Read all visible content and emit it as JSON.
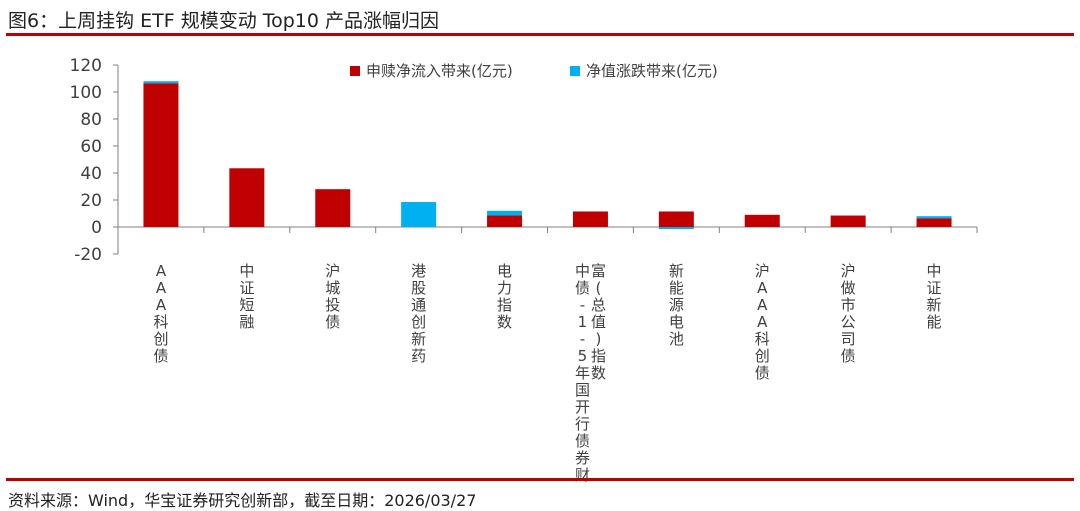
{
  "figure": {
    "title": "图6：上周挂钩 ETF 规模变动 Top10 产品涨幅归因",
    "source": "资料来源：Wind，华宝证券研究创新部，截至日期：2026/03/27"
  },
  "colors": {
    "accent_rule": "#c00000"
  },
  "chart_data": {
    "type": "bar",
    "stacked": true,
    "categories": [
      [
        "AAA科创债"
      ],
      [
        "中证短融"
      ],
      [
        "沪城投债"
      ],
      [
        "港股通创新药"
      ],
      [
        "电力指数"
      ],
      [
        "中债-1-5年国开行债券财",
        "富(总值)指数"
      ],
      [
        "新能源电池"
      ],
      [
        "沪AAA科创债"
      ],
      [
        "沪做市公司债"
      ],
      [
        "中证新能"
      ]
    ],
    "series": [
      {
        "name": "申赎净流入带来(亿元)",
        "color": "#c00000",
        "values": [
          106.5,
          43.5,
          28,
          0,
          8.5,
          11.5,
          11.5,
          9,
          8.5,
          6.5
        ]
      },
      {
        "name": "净值涨跌带来(亿元)",
        "color": "#00b0f0",
        "values": [
          1.5,
          0,
          0,
          18.5,
          3.5,
          0,
          -1.5,
          0,
          0,
          1.5
        ]
      }
    ],
    "ylim": [
      -20,
      120
    ],
    "yticks": [
      "-20",
      "0",
      "20",
      "40",
      "60",
      "80",
      "100",
      "120"
    ],
    "legend_position": "top-right",
    "grid": false
  }
}
